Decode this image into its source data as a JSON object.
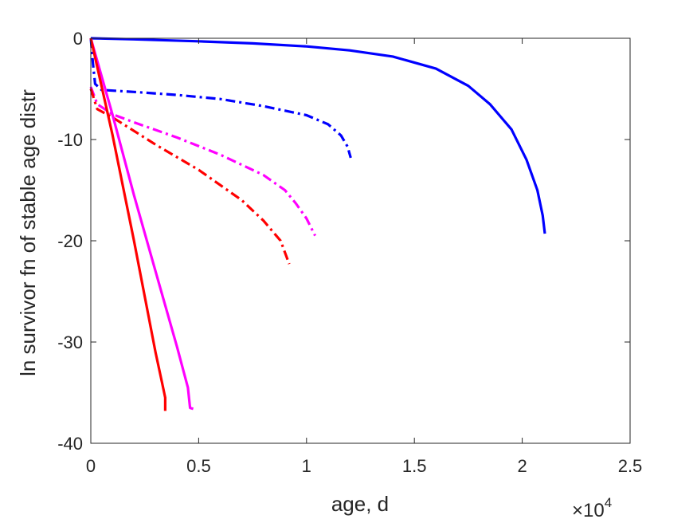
{
  "chart_data": {
    "type": "line",
    "xlabel": "age, d",
    "ylabel": "ln survivor fn of stable age distr",
    "x_exponent_label": {
      "base": "×10",
      "exp": "4"
    },
    "xlim": [
      0,
      2.5
    ],
    "ylim": [
      -40,
      0
    ],
    "xticks": [
      0,
      0.5,
      1,
      1.5,
      2,
      2.5
    ],
    "xtick_labels": [
      "0",
      "0.5",
      "1",
      "1.5",
      "2",
      "2.5"
    ],
    "yticks": [
      0,
      -10,
      -20,
      -30,
      -40
    ],
    "ytick_labels": [
      "0",
      "-10",
      "-20",
      "-30",
      "-40"
    ],
    "grid": false,
    "series": [
      {
        "color": "#0000ff",
        "style": "solid",
        "points": [
          [
            0,
            0
          ],
          [
            0.2,
            -0.1
          ],
          [
            0.5,
            -0.3
          ],
          [
            0.75,
            -0.5
          ],
          [
            1.0,
            -0.8
          ],
          [
            1.2,
            -1.2
          ],
          [
            1.4,
            -1.8
          ],
          [
            1.6,
            -3.0
          ],
          [
            1.75,
            -4.7
          ],
          [
            1.85,
            -6.5
          ],
          [
            1.95,
            -9.0
          ],
          [
            2.02,
            -12.0
          ],
          [
            2.07,
            -15.0
          ],
          [
            2.095,
            -17.5
          ],
          [
            2.105,
            -19.3
          ]
        ]
      },
      {
        "color": "#0000ff",
        "style": "dashdot",
        "points": [
          [
            0,
            0
          ],
          [
            0.01,
            -2.5
          ],
          [
            0.02,
            -4.5
          ],
          [
            0.05,
            -5.1
          ],
          [
            0.2,
            -5.3
          ],
          [
            0.4,
            -5.6
          ],
          [
            0.6,
            -6.0
          ],
          [
            0.8,
            -6.7
          ],
          [
            1.0,
            -7.6
          ],
          [
            1.1,
            -8.5
          ],
          [
            1.16,
            -9.6
          ],
          [
            1.19,
            -10.7
          ],
          [
            1.205,
            -11.8
          ]
        ]
      },
      {
        "color": "#ff00ff",
        "style": "dashdot",
        "points": [
          [
            0,
            -4.8
          ],
          [
            0.03,
            -6.5
          ],
          [
            0.1,
            -7.5
          ],
          [
            0.2,
            -8.3
          ],
          [
            0.4,
            -9.8
          ],
          [
            0.6,
            -11.5
          ],
          [
            0.8,
            -13.5
          ],
          [
            0.9,
            -15.0
          ],
          [
            0.95,
            -16.3
          ],
          [
            1.0,
            -17.8
          ],
          [
            1.04,
            -19.5
          ]
        ]
      },
      {
        "color": "#ff0000",
        "style": "dashdot",
        "points": [
          [
            0,
            -5.0
          ],
          [
            0.03,
            -7.0
          ],
          [
            0.1,
            -7.8
          ],
          [
            0.3,
            -10.5
          ],
          [
            0.5,
            -13.0
          ],
          [
            0.7,
            -16.0
          ],
          [
            0.8,
            -18.0
          ],
          [
            0.88,
            -20.0
          ],
          [
            0.92,
            -22.3
          ]
        ]
      },
      {
        "color": "#ff00ff",
        "style": "solid",
        "points": [
          [
            0,
            0
          ],
          [
            0.1,
            -7.5
          ],
          [
            0.2,
            -15.5
          ],
          [
            0.3,
            -23.0
          ],
          [
            0.4,
            -30.5
          ],
          [
            0.45,
            -34.5
          ],
          [
            0.46,
            -36.5
          ],
          [
            0.475,
            -36.6
          ]
        ]
      },
      {
        "color": "#ff0000",
        "style": "solid",
        "points": [
          [
            0,
            0
          ],
          [
            0.1,
            -9.5
          ],
          [
            0.2,
            -20.0
          ],
          [
            0.3,
            -31.0
          ],
          [
            0.33,
            -34.0
          ],
          [
            0.345,
            -35.5
          ],
          [
            0.345,
            -36.8
          ]
        ]
      }
    ]
  }
}
